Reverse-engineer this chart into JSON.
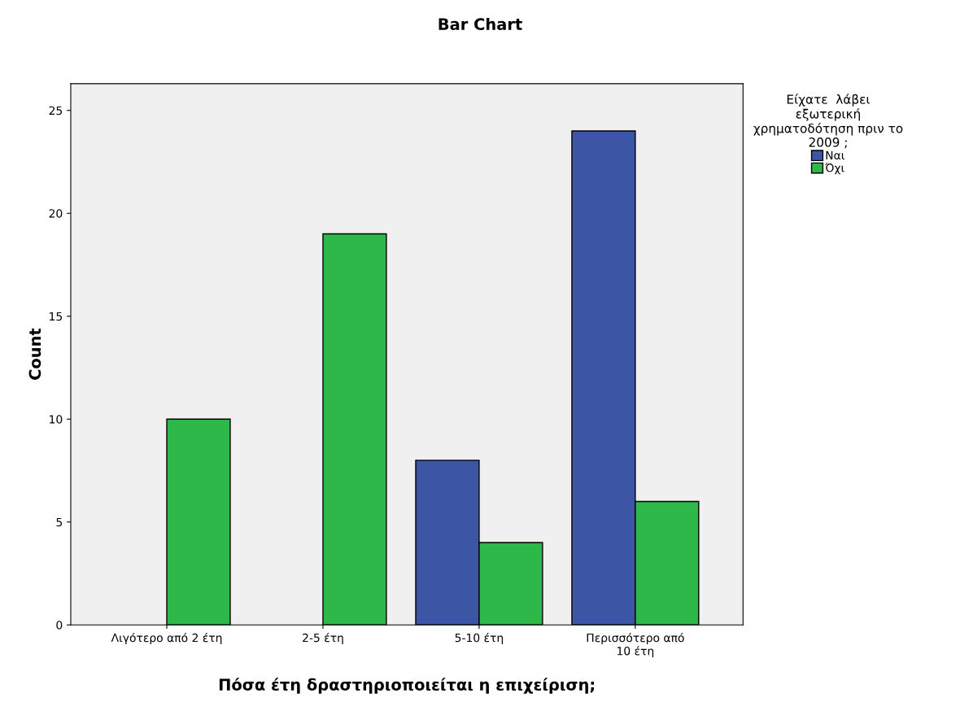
{
  "chart_data": {
    "type": "bar",
    "title": "Bar Chart",
    "xlabel": "Πόσα έτη δραστηριοποιείται η επιχείριση;",
    "ylabel": "Count",
    "categories": [
      "Λιγότερο από 2 έτη",
      "2-5 έτη",
      "5-10 έτη",
      "Περισσότερο από\n10 έτη"
    ],
    "series": [
      {
        "name": "Ναι",
        "color": "#3c55a5",
        "values": [
          null,
          null,
          8,
          24
        ]
      },
      {
        "name": "Όχι",
        "color": "#2fb84a",
        "values": [
          10,
          19,
          4,
          6
        ]
      }
    ],
    "legend_title": "Είχατε  λάβει\nεξωτερική\nχρηματοδότηση πριν το\n2009 ;",
    "ylim": [
      0,
      26.3
    ],
    "yticks": [
      0,
      5,
      10,
      15,
      20,
      25
    ],
    "grid": false,
    "legend": "top right"
  }
}
